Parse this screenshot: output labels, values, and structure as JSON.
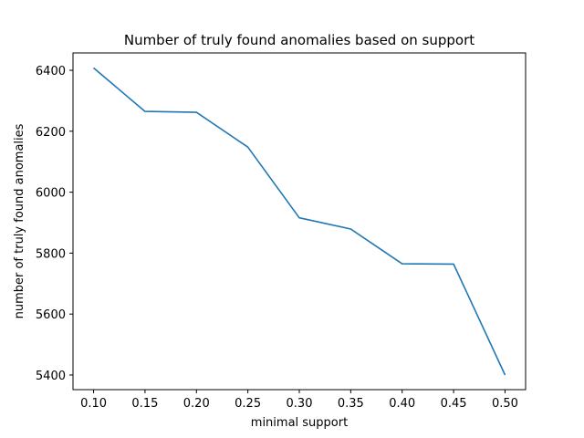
{
  "chart_data": {
    "type": "line",
    "title": "Number of truly found anomalies based on support",
    "xlabel": "minimal support",
    "ylabel": "number of truly found anomalies",
    "x": [
      0.1,
      0.15,
      0.2,
      0.25,
      0.3,
      0.35,
      0.4,
      0.45,
      0.5
    ],
    "series": [
      {
        "values": [
          6408,
          6265,
          6262,
          6148,
          5916,
          5879,
          5765,
          5764,
          5400
        ],
        "color": "#1f77b4"
      }
    ],
    "xlim": [
      0.08,
      0.52
    ],
    "ylim": [
      5352,
      6457
    ],
    "xticks": [
      0.1,
      0.15,
      0.2,
      0.25,
      0.3,
      0.35,
      0.4,
      0.45,
      0.5
    ],
    "xtick_labels": [
      "0.10",
      "0.15",
      "0.20",
      "0.25",
      "0.30",
      "0.35",
      "0.40",
      "0.45",
      "0.50"
    ],
    "yticks": [
      5400,
      5600,
      5800,
      6000,
      6200,
      6400
    ],
    "ytick_labels": [
      "5400",
      "5600",
      "5800",
      "6000",
      "6200",
      "6400"
    ],
    "grid": false,
    "legend": false
  }
}
